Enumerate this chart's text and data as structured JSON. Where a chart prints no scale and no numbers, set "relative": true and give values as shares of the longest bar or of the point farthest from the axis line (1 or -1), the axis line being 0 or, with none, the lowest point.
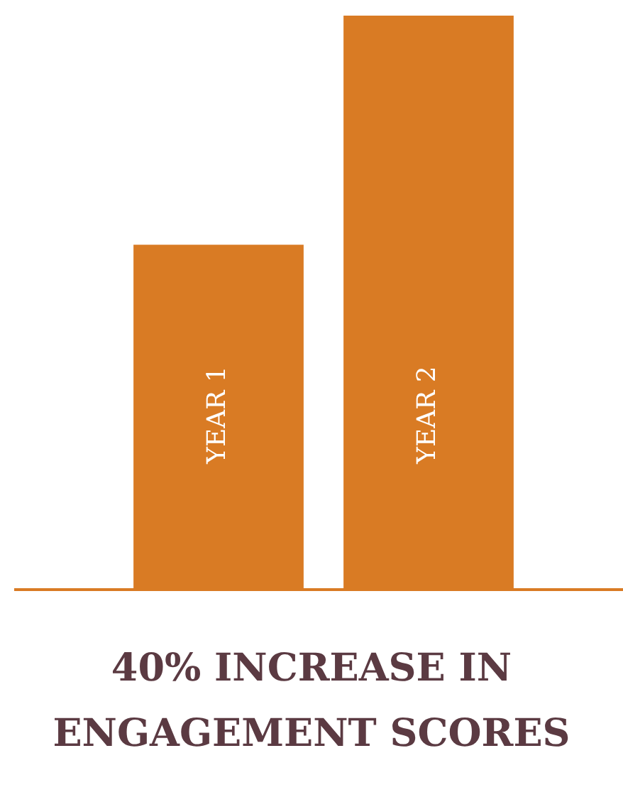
{
  "chart_data": {
    "type": "bar",
    "title": "40% INCREASE IN ENGAGEMENT SCORES",
    "categories": [
      "YEAR 1",
      "YEAR 2"
    ],
    "values": [
      0.6,
      1
    ],
    "color": "#d97b24",
    "relative": true,
    "legend": false
  }
}
